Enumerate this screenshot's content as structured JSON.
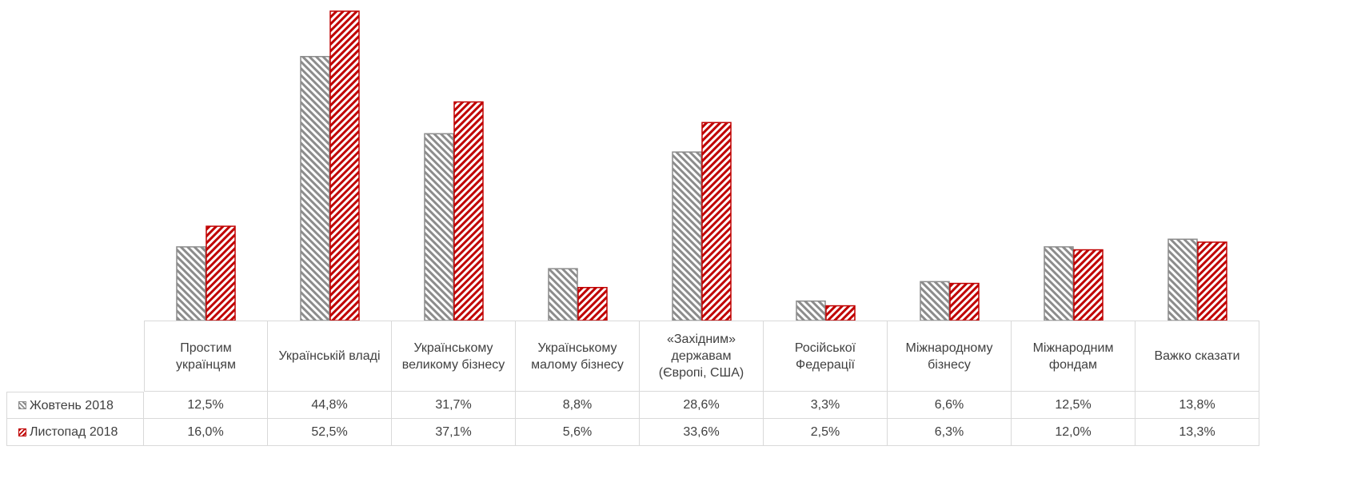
{
  "chart_data": {
    "type": "bar",
    "categories": [
      "Простим українцям",
      "Українській владі",
      "Українському великому бізнесу",
      "Українському малому бізнесу",
      "«Західним» державам (Європі, США)",
      "Російської Федерації",
      "Міжнародному бізнесу",
      "Міжнародним фондам",
      "Важко сказати"
    ],
    "series": [
      {
        "name": "Жовтень 2018",
        "color": "#8c8c8c",
        "values": [
          12.5,
          44.8,
          31.7,
          8.8,
          28.6,
          3.3,
          6.6,
          12.5,
          13.8
        ],
        "value_labels": [
          "12,5%",
          "44,8%",
          "31,7%",
          "8,8%",
          "28,6%",
          "3,3%",
          "6,6%",
          "12,5%",
          "13,8%"
        ]
      },
      {
        "name": "Листопад 2018",
        "color": "#c00000",
        "values": [
          16.0,
          52.5,
          37.1,
          5.6,
          33.6,
          2.5,
          6.3,
          12.0,
          13.3
        ],
        "value_labels": [
          "16,0%",
          "52,5%",
          "37,1%",
          "5,6%",
          "33,6%",
          "2,5%",
          "6,3%",
          "12,0%",
          "13,3%"
        ]
      }
    ]
  }
}
